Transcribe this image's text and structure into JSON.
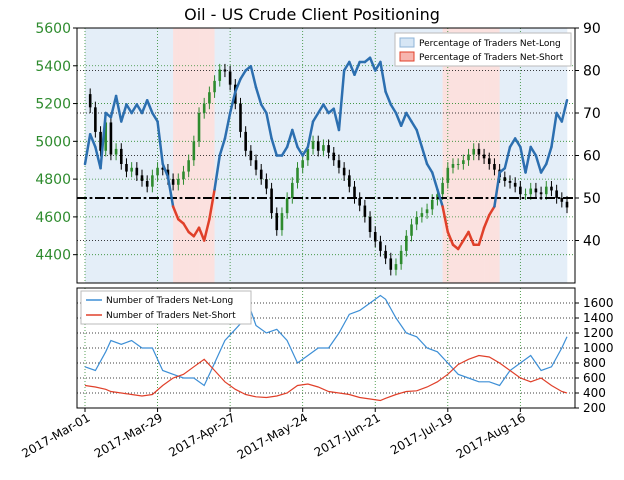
{
  "title": "Oil - US Crude Client Positioning",
  "chart_data": [
    {
      "type": "line",
      "panel": "upper",
      "left_axis": {
        "ticks": [
          4400,
          4600,
          4800,
          5000,
          5200,
          5400,
          5600
        ],
        "color": "#2e8b2e"
      },
      "right_axis": {
        "ticks": [
          40,
          50,
          60,
          70,
          80,
          90
        ],
        "range": [
          30,
          90
        ]
      },
      "x_ticks": [
        "2017-Mar-01",
        "2017-Mar-29",
        "2017-Apr-27",
        "2017-May-24",
        "2017-Jun-21",
        "2017-Jul-19",
        "2017-Aug-16"
      ],
      "legend": [
        "Percentage of Traders Net-Long",
        "Percentage of Traders Net-Short"
      ],
      "legend_position": "top-right",
      "reference_line": 50,
      "grid": true,
      "colors": {
        "net_long": "#2c6fb0",
        "net_short": "#e0402a",
        "long_fill": "#e4eef8",
        "short_fill": "#fbe1df",
        "candle_up": "#2e8b2e",
        "candle_down": "#000000"
      },
      "percent_net_long_series": [
        [
          0,
          58
        ],
        [
          2,
          65
        ],
        [
          4,
          62
        ],
        [
          6,
          57
        ],
        [
          8,
          70
        ],
        [
          10,
          69
        ],
        [
          12,
          74
        ],
        [
          14,
          68
        ],
        [
          16,
          72
        ],
        [
          18,
          70
        ],
        [
          20,
          72
        ],
        [
          22,
          70
        ],
        [
          24,
          73
        ],
        [
          26,
          70
        ],
        [
          28,
          68
        ],
        [
          30,
          58
        ],
        [
          32,
          55
        ],
        [
          34,
          48
        ],
        [
          36,
          45
        ],
        [
          38,
          44
        ],
        [
          40,
          42
        ],
        [
          42,
          41
        ],
        [
          44,
          43
        ],
        [
          46,
          40
        ],
        [
          48,
          45
        ],
        [
          50,
          52
        ],
        [
          52,
          60
        ],
        [
          54,
          64
        ],
        [
          56,
          70
        ],
        [
          58,
          75
        ],
        [
          60,
          78
        ],
        [
          62,
          80
        ],
        [
          64,
          81
        ],
        [
          66,
          76
        ],
        [
          68,
          72
        ],
        [
          70,
          70
        ],
        [
          72,
          64
        ],
        [
          74,
          60
        ],
        [
          76,
          60
        ],
        [
          78,
          62
        ],
        [
          80,
          66
        ],
        [
          82,
          62
        ],
        [
          84,
          60
        ],
        [
          86,
          62
        ],
        [
          88,
          68
        ],
        [
          90,
          70
        ],
        [
          92,
          72
        ],
        [
          94,
          70
        ],
        [
          96,
          71
        ],
        [
          98,
          66
        ],
        [
          100,
          80
        ],
        [
          102,
          82
        ],
        [
          104,
          79
        ],
        [
          106,
          82
        ],
        [
          108,
          82
        ],
        [
          110,
          83
        ],
        [
          112,
          80
        ],
        [
          114,
          82
        ],
        [
          116,
          75
        ],
        [
          118,
          72
        ],
        [
          120,
          70
        ],
        [
          122,
          67
        ],
        [
          124,
          70
        ],
        [
          126,
          68
        ],
        [
          128,
          66
        ],
        [
          130,
          62
        ],
        [
          132,
          58
        ],
        [
          134,
          56
        ],
        [
          136,
          52
        ],
        [
          138,
          48
        ],
        [
          140,
          42
        ],
        [
          142,
          39
        ],
        [
          144,
          38
        ],
        [
          146,
          40
        ],
        [
          148,
          42
        ],
        [
          150,
          39
        ],
        [
          152,
          39
        ],
        [
          154,
          43
        ],
        [
          156,
          46
        ],
        [
          158,
          48
        ],
        [
          160,
          56
        ],
        [
          162,
          57
        ],
        [
          164,
          62
        ],
        [
          166,
          64
        ],
        [
          168,
          62
        ],
        [
          170,
          56
        ],
        [
          172,
          62
        ],
        [
          174,
          60
        ],
        [
          176,
          56
        ],
        [
          178,
          58
        ],
        [
          180,
          62
        ],
        [
          182,
          70
        ],
        [
          184,
          68
        ],
        [
          186,
          73
        ]
      ],
      "price_series": [
        [
          0,
          5250
        ],
        [
          2,
          5180
        ],
        [
          4,
          5050
        ],
        [
          6,
          4950
        ],
        [
          8,
          5100
        ],
        [
          10,
          4930
        ],
        [
          12,
          4960
        ],
        [
          14,
          4880
        ],
        [
          16,
          4840
        ],
        [
          18,
          4860
        ],
        [
          20,
          4820
        ],
        [
          22,
          4790
        ],
        [
          24,
          4760
        ],
        [
          26,
          4820
        ],
        [
          28,
          4860
        ],
        [
          30,
          4850
        ],
        [
          32,
          4800
        ],
        [
          34,
          4770
        ],
        [
          36,
          4800
        ],
        [
          38,
          4840
        ],
        [
          40,
          4900
        ],
        [
          42,
          5000
        ],
        [
          44,
          5150
        ],
        [
          46,
          5200
        ],
        [
          48,
          5260
        ],
        [
          50,
          5320
        ],
        [
          52,
          5380
        ],
        [
          54,
          5370
        ],
        [
          56,
          5300
        ],
        [
          58,
          5200
        ],
        [
          60,
          5050
        ],
        [
          62,
          4950
        ],
        [
          64,
          4900
        ],
        [
          66,
          4850
        ],
        [
          68,
          4800
        ],
        [
          70,
          4750
        ],
        [
          72,
          4620
        ],
        [
          74,
          4530
        ],
        [
          76,
          4620
        ],
        [
          78,
          4700
        ],
        [
          80,
          4780
        ],
        [
          82,
          4860
        ],
        [
          84,
          4900
        ],
        [
          86,
          4960
        ],
        [
          88,
          5000
        ],
        [
          90,
          4950
        ],
        [
          92,
          4980
        ],
        [
          94,
          4940
        ],
        [
          96,
          4900
        ],
        [
          98,
          4860
        ],
        [
          100,
          4820
        ],
        [
          102,
          4760
        ],
        [
          104,
          4700
        ],
        [
          106,
          4660
        ],
        [
          108,
          4600
        ],
        [
          110,
          4520
        ],
        [
          112,
          4470
        ],
        [
          114,
          4420
        ],
        [
          116,
          4380
        ],
        [
          118,
          4320
        ],
        [
          120,
          4350
        ],
        [
          122,
          4420
        ],
        [
          124,
          4500
        ],
        [
          126,
          4560
        ],
        [
          128,
          4600
        ],
        [
          130,
          4620
        ],
        [
          132,
          4640
        ],
        [
          134,
          4690
        ],
        [
          136,
          4720
        ],
        [
          138,
          4780
        ],
        [
          140,
          4860
        ],
        [
          142,
          4880
        ],
        [
          144,
          4880
        ],
        [
          146,
          4900
        ],
        [
          148,
          4930
        ],
        [
          150,
          4960
        ],
        [
          152,
          4930
        ],
        [
          154,
          4910
        ],
        [
          156,
          4880
        ],
        [
          158,
          4850
        ],
        [
          160,
          4810
        ],
        [
          162,
          4790
        ],
        [
          164,
          4780
        ],
        [
          166,
          4760
        ],
        [
          168,
          4720
        ],
        [
          170,
          4720
        ],
        [
          172,
          4750
        ],
        [
          174,
          4730
        ],
        [
          176,
          4720
        ],
        [
          178,
          4760
        ],
        [
          180,
          4740
        ],
        [
          182,
          4700
        ],
        [
          184,
          4680
        ],
        [
          186,
          4650
        ]
      ]
    },
    {
      "type": "line",
      "panel": "lower",
      "series": [
        {
          "name": "Number of Traders Net-Long",
          "color": "#3d8fd6",
          "values": [
            [
              0,
              750
            ],
            [
              4,
              700
            ],
            [
              8,
              950
            ],
            [
              10,
              1100
            ],
            [
              14,
              1050
            ],
            [
              18,
              1100
            ],
            [
              22,
              1000
            ],
            [
              26,
              1000
            ],
            [
              30,
              700
            ],
            [
              34,
              650
            ],
            [
              38,
              600
            ],
            [
              42,
              600
            ],
            [
              46,
              500
            ],
            [
              50,
              800
            ],
            [
              54,
              1100
            ],
            [
              58,
              1250
            ],
            [
              62,
              1400
            ],
            [
              64,
              1500
            ],
            [
              66,
              1300
            ],
            [
              70,
              1200
            ],
            [
              74,
              1250
            ],
            [
              78,
              1100
            ],
            [
              82,
              800
            ],
            [
              86,
              900
            ],
            [
              90,
              1000
            ],
            [
              94,
              1000
            ],
            [
              98,
              1200
            ],
            [
              102,
              1450
            ],
            [
              106,
              1500
            ],
            [
              110,
              1600
            ],
            [
              114,
              1700
            ],
            [
              116,
              1650
            ],
            [
              120,
              1400
            ],
            [
              124,
              1200
            ],
            [
              128,
              1150
            ],
            [
              132,
              1000
            ],
            [
              136,
              950
            ],
            [
              140,
              800
            ],
            [
              144,
              650
            ],
            [
              148,
              600
            ],
            [
              152,
              550
            ],
            [
              156,
              550
            ],
            [
              160,
              500
            ],
            [
              164,
              700
            ],
            [
              168,
              800
            ],
            [
              172,
              900
            ],
            [
              176,
              700
            ],
            [
              180,
              750
            ],
            [
              184,
              1000
            ],
            [
              186,
              1150
            ]
          ]
        },
        {
          "name": "Number of Traders Net-Short",
          "color": "#e0402a",
          "values": [
            [
              0,
              500
            ],
            [
              4,
              480
            ],
            [
              8,
              450
            ],
            [
              10,
              420
            ],
            [
              14,
              400
            ],
            [
              18,
              380
            ],
            [
              22,
              360
            ],
            [
              26,
              380
            ],
            [
              30,
              500
            ],
            [
              34,
              600
            ],
            [
              38,
              650
            ],
            [
              42,
              750
            ],
            [
              46,
              850
            ],
            [
              50,
              700
            ],
            [
              54,
              550
            ],
            [
              58,
              450
            ],
            [
              62,
              380
            ],
            [
              66,
              350
            ],
            [
              70,
              340
            ],
            [
              74,
              360
            ],
            [
              78,
              400
            ],
            [
              82,
              500
            ],
            [
              86,
              520
            ],
            [
              90,
              480
            ],
            [
              94,
              420
            ],
            [
              98,
              400
            ],
            [
              102,
              380
            ],
            [
              106,
              340
            ],
            [
              110,
              320
            ],
            [
              114,
              300
            ],
            [
              116,
              330
            ],
            [
              120,
              380
            ],
            [
              124,
              420
            ],
            [
              128,
              430
            ],
            [
              132,
              480
            ],
            [
              136,
              550
            ],
            [
              140,
              650
            ],
            [
              144,
              780
            ],
            [
              148,
              850
            ],
            [
              152,
              900
            ],
            [
              156,
              880
            ],
            [
              160,
              800
            ],
            [
              164,
              700
            ],
            [
              168,
              600
            ],
            [
              172,
              550
            ],
            [
              176,
              600
            ],
            [
              180,
              500
            ],
            [
              184,
              420
            ],
            [
              186,
              400
            ]
          ]
        }
      ],
      "right_axis": {
        "ticks": [
          200,
          400,
          600,
          800,
          1000,
          1200,
          1400,
          1600
        ],
        "range": [
          200,
          1800
        ]
      },
      "legend_position": "top-left",
      "grid": true
    }
  ]
}
